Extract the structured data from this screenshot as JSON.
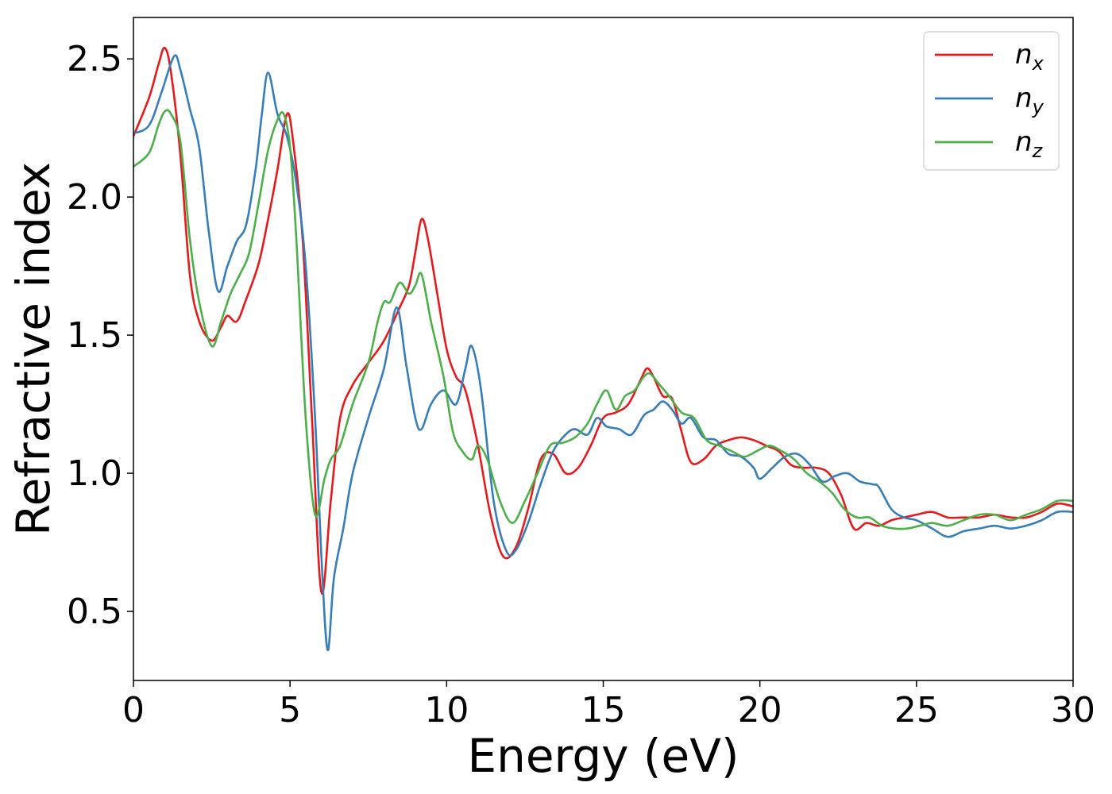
{
  "chart_data": {
    "type": "line",
    "xlabel": "Energy (eV)",
    "ylabel": "Refractive index",
    "xlim": [
      0,
      30
    ],
    "ylim": [
      0.25,
      2.65
    ],
    "xticks": [
      "0",
      "5",
      "10",
      "15",
      "20",
      "25",
      "30"
    ],
    "yticks": [
      "0.5",
      "1.0",
      "1.5",
      "2.0",
      "2.5"
    ],
    "grid": false,
    "legend_position": "top-right",
    "series": [
      {
        "name": "n",
        "subscript": "x",
        "color": "#e41a1c",
        "x": [
          0,
          0.5,
          0.8,
          1.0,
          1.2,
          1.5,
          1.8,
          2.1,
          2.5,
          2.8,
          3.0,
          3.3,
          3.6,
          4.0,
          4.3,
          4.6,
          4.9,
          5.1,
          5.4,
          5.7,
          6.0,
          6.3,
          6.6,
          7.0,
          7.5,
          8.0,
          8.5,
          8.8,
          9.0,
          9.2,
          9.4,
          9.7,
          10.0,
          10.3,
          10.6,
          11.0,
          11.4,
          11.8,
          12.2,
          12.6,
          13.0,
          13.4,
          13.8,
          14.2,
          14.6,
          15.0,
          15.4,
          15.8,
          16.2,
          16.4,
          16.6,
          16.9,
          17.2,
          17.5,
          17.8,
          18.2,
          18.6,
          19.0,
          19.4,
          19.8,
          20.2,
          20.6,
          21.0,
          21.4,
          21.8,
          22.2,
          22.6,
          23.0,
          23.4,
          23.8,
          24.2,
          24.6,
          25.0,
          25.5,
          26.0,
          26.5,
          27.0,
          27.5,
          28.0,
          28.5,
          29.0,
          29.5,
          30.0
        ],
        "y": [
          2.22,
          2.36,
          2.48,
          2.54,
          2.45,
          2.15,
          1.72,
          1.55,
          1.48,
          1.53,
          1.57,
          1.55,
          1.63,
          1.76,
          1.92,
          2.1,
          2.3,
          2.2,
          1.85,
          1.2,
          0.57,
          0.9,
          1.2,
          1.32,
          1.4,
          1.48,
          1.6,
          1.68,
          1.8,
          1.92,
          1.85,
          1.65,
          1.45,
          1.35,
          1.3,
          1.1,
          0.85,
          0.7,
          0.73,
          0.87,
          1.05,
          1.07,
          1.0,
          1.02,
          1.1,
          1.2,
          1.22,
          1.25,
          1.34,
          1.38,
          1.35,
          1.28,
          1.27,
          1.15,
          1.04,
          1.05,
          1.1,
          1.12,
          1.13,
          1.12,
          1.1,
          1.08,
          1.03,
          1.02,
          1.02,
          1.0,
          0.92,
          0.8,
          0.82,
          0.81,
          0.83,
          0.84,
          0.85,
          0.86,
          0.84,
          0.84,
          0.84,
          0.85,
          0.84,
          0.84,
          0.86,
          0.89,
          0.88
        ]
      },
      {
        "name": "n",
        "subscript": "y",
        "color": "#377eb8",
        "x": [
          0,
          0.5,
          0.9,
          1.3,
          1.5,
          1.8,
          2.1,
          2.4,
          2.7,
          3.0,
          3.3,
          3.6,
          3.9,
          4.1,
          4.3,
          4.6,
          4.9,
          5.2,
          5.5,
          5.8,
          6.0,
          6.2,
          6.4,
          6.7,
          7.0,
          7.5,
          8.0,
          8.4,
          8.7,
          9.0,
          9.2,
          9.5,
          9.9,
          10.3,
          10.6,
          10.8,
          11.1,
          11.5,
          11.9,
          12.2,
          12.6,
          13.0,
          13.4,
          13.8,
          14.1,
          14.5,
          14.8,
          15.1,
          15.5,
          15.9,
          16.3,
          16.6,
          16.9,
          17.2,
          17.5,
          17.8,
          18.2,
          18.6,
          19.0,
          19.4,
          19.8,
          20.0,
          20.4,
          20.8,
          21.2,
          21.6,
          22.0,
          22.4,
          22.8,
          23.2,
          23.6,
          23.8,
          24.2,
          24.6,
          25.0,
          25.5,
          26.0,
          26.5,
          27.0,
          27.5,
          28.0,
          28.5,
          29.0,
          29.5,
          30.0
        ],
        "y": [
          2.23,
          2.26,
          2.38,
          2.51,
          2.46,
          2.32,
          2.18,
          1.88,
          1.66,
          1.75,
          1.84,
          1.9,
          2.1,
          2.3,
          2.45,
          2.3,
          2.22,
          2.05,
          1.75,
          1.2,
          0.7,
          0.36,
          0.62,
          0.8,
          1.0,
          1.2,
          1.38,
          1.6,
          1.4,
          1.2,
          1.16,
          1.25,
          1.3,
          1.25,
          1.38,
          1.46,
          1.3,
          0.9,
          0.72,
          0.72,
          0.82,
          0.96,
          1.08,
          1.14,
          1.16,
          1.14,
          1.2,
          1.17,
          1.16,
          1.14,
          1.21,
          1.23,
          1.26,
          1.23,
          1.18,
          1.2,
          1.13,
          1.12,
          1.07,
          1.06,
          1.02,
          0.98,
          1.02,
          1.06,
          1.07,
          1.03,
          0.97,
          0.99,
          1.0,
          0.97,
          0.96,
          0.95,
          0.87,
          0.84,
          0.83,
          0.8,
          0.77,
          0.79,
          0.8,
          0.81,
          0.8,
          0.81,
          0.83,
          0.86,
          0.86
        ]
      },
      {
        "name": "n",
        "subscript": "z",
        "color": "#4daf4a",
        "x": [
          0,
          0.5,
          0.8,
          1.0,
          1.2,
          1.5,
          1.8,
          2.1,
          2.5,
          2.8,
          3.1,
          3.4,
          3.7,
          4.0,
          4.3,
          4.6,
          4.8,
          5.0,
          5.2,
          5.5,
          5.8,
          6.1,
          6.3,
          6.6,
          7.0,
          7.5,
          7.8,
          8.0,
          8.2,
          8.5,
          8.8,
          9.0,
          9.2,
          9.5,
          9.9,
          10.2,
          10.5,
          10.8,
          11.0,
          11.3,
          11.7,
          12.1,
          12.5,
          12.9,
          13.3,
          13.7,
          14.1,
          14.5,
          14.8,
          15.1,
          15.4,
          15.7,
          16.0,
          16.3,
          16.5,
          16.8,
          17.1,
          17.5,
          17.9,
          18.3,
          18.7,
          19.1,
          19.5,
          19.9,
          20.3,
          20.7,
          21.1,
          21.5,
          21.9,
          22.3,
          22.7,
          23.1,
          23.5,
          23.9,
          24.3,
          24.7,
          25.1,
          25.5,
          26.0,
          26.5,
          27.0,
          27.5,
          28.0,
          28.5,
          29.0,
          29.5,
          30.0
        ],
        "y": [
          2.11,
          2.16,
          2.26,
          2.31,
          2.3,
          2.2,
          1.85,
          1.62,
          1.46,
          1.55,
          1.65,
          1.72,
          1.8,
          1.98,
          2.17,
          2.28,
          2.3,
          2.18,
          1.85,
          1.2,
          0.85,
          0.98,
          1.05,
          1.1,
          1.25,
          1.4,
          1.55,
          1.62,
          1.62,
          1.69,
          1.65,
          1.68,
          1.72,
          1.55,
          1.35,
          1.15,
          1.08,
          1.05,
          1.1,
          1.05,
          0.9,
          0.82,
          0.9,
          1.0,
          1.1,
          1.11,
          1.13,
          1.18,
          1.25,
          1.3,
          1.23,
          1.28,
          1.3,
          1.35,
          1.36,
          1.32,
          1.28,
          1.22,
          1.2,
          1.12,
          1.1,
          1.08,
          1.06,
          1.08,
          1.1,
          1.08,
          1.05,
          1.0,
          0.97,
          0.93,
          0.87,
          0.84,
          0.84,
          0.81,
          0.8,
          0.8,
          0.81,
          0.82,
          0.81,
          0.83,
          0.85,
          0.85,
          0.83,
          0.85,
          0.87,
          0.9,
          0.9
        ]
      }
    ]
  }
}
